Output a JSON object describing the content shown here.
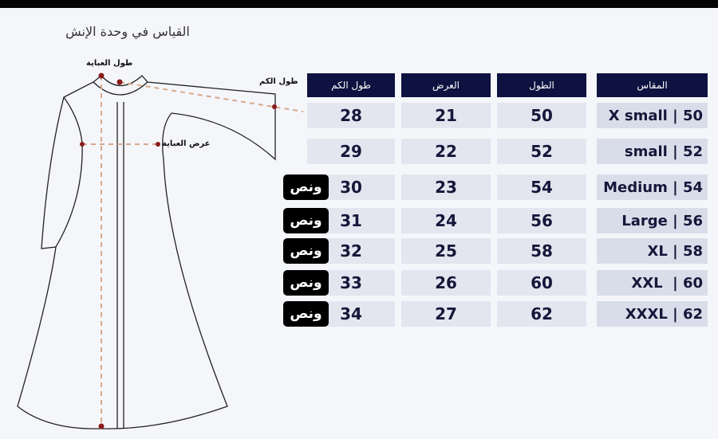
{
  "title": "القياس في وحدة الإنش",
  "diagram_labels": {
    "length": "طول العباية",
    "sleeve": "طول الكم",
    "width": "عرض العباية"
  },
  "colors": {
    "header": "#0d1240",
    "cell": "#e3e6ef",
    "badge": "#000000",
    "marker": "#8b1a1a"
  },
  "table": {
    "headers": [
      "طول الكم",
      "العرض",
      "الطول",
      "المقاس"
    ],
    "rows": [
      {
        "sleeve": "28",
        "width": "21",
        "length": "50",
        "size": "X small | 50",
        "badge": ""
      },
      {
        "sleeve": "29",
        "width": "22",
        "length": "52",
        "size": "small | 52",
        "badge": ""
      },
      {
        "sleeve": "30",
        "width": "23",
        "length": "54",
        "size": "Medium | 54",
        "badge": "ونص"
      },
      {
        "sleeve": "31",
        "width": "24",
        "length": "56",
        "size": "Large | 56",
        "badge": "ونص"
      },
      {
        "sleeve": "32",
        "width": "25",
        "length": "58",
        "size": "XL | 58",
        "badge": "ونص"
      },
      {
        "sleeve": "33",
        "width": "26",
        "length": "60",
        "size": "XXL  | 60",
        "badge": "ونص"
      },
      {
        "sleeve": "34",
        "width": "27",
        "length": "62",
        "size": "XXXL | 62",
        "badge": "ونص"
      }
    ]
  }
}
